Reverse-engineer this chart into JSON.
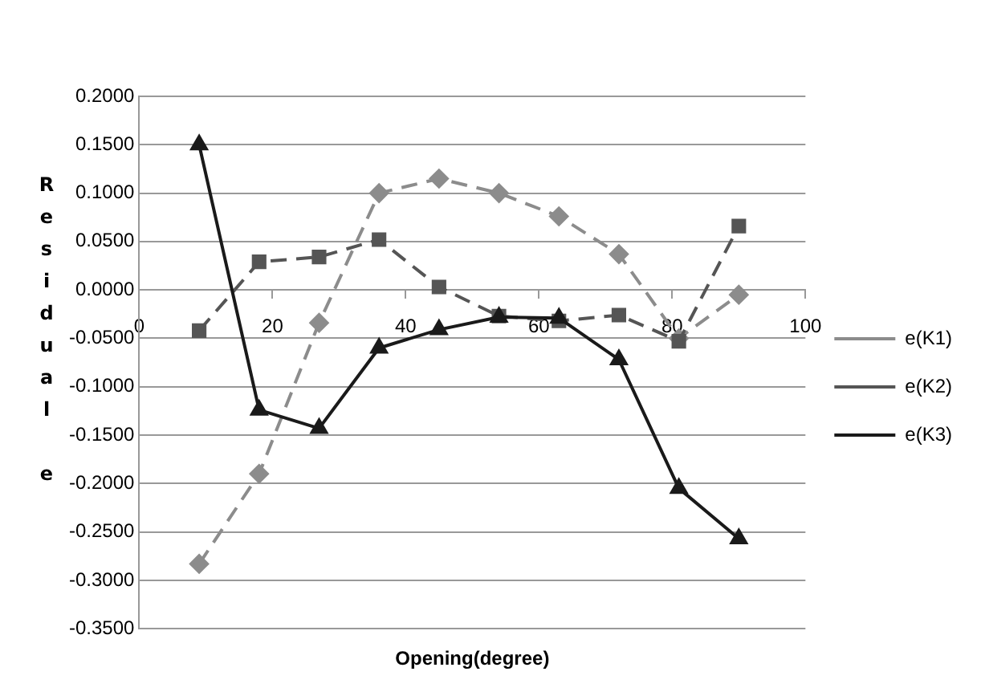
{
  "chart_data": {
    "type": "line",
    "xlabel": "Opening(degree)",
    "ylabel": "Residual e",
    "xlim": [
      0,
      100
    ],
    "xticks": [
      0,
      20,
      40,
      60,
      80,
      100
    ],
    "ylim": [
      -0.35,
      0.2
    ],
    "yticks": [
      {
        "value": -0.35,
        "label": "-0.3500"
      },
      {
        "value": -0.3,
        "label": "-0.3000"
      },
      {
        "value": -0.25,
        "label": "-0.2500"
      },
      {
        "value": -0.2,
        "label": "-0.2000"
      },
      {
        "value": -0.15,
        "label": "-0.1500"
      },
      {
        "value": -0.1,
        "label": "-0.1000"
      },
      {
        "value": -0.05,
        "label": "-0.0500"
      },
      {
        "value": 0,
        "label": "0.0000"
      },
      {
        "value": 0.05,
        "label": "0.0500"
      },
      {
        "value": 0.1,
        "label": "0.1000"
      },
      {
        "value": 0.15,
        "label": "0.1500"
      },
      {
        "value": 0.2,
        "label": "0.2000"
      }
    ],
    "grid": "y",
    "legend": "right",
    "x": [
      9,
      18,
      27,
      36,
      45,
      54,
      63,
      72,
      81,
      90
    ],
    "series": [
      {
        "name": "e(K1)",
        "color": "#8c8c8c",
        "marker": "diamond",
        "line_style": "dashed",
        "values": [
          -0.283,
          -0.19,
          -0.034,
          0.1,
          0.115,
          0.1,
          0.076,
          0.037,
          -0.05,
          -0.005
        ]
      },
      {
        "name": "e(K2)",
        "color": "#555555",
        "marker": "square",
        "line_style": "dashed",
        "values": [
          -0.042,
          0.029,
          0.034,
          0.052,
          0.003,
          -0.027,
          -0.032,
          -0.026,
          -0.053,
          0.066
        ]
      },
      {
        "name": "e(K3)",
        "color": "#1a1a1a",
        "marker": "triangle",
        "line_style": "solid",
        "values": [
          0.15,
          -0.124,
          -0.143,
          -0.06,
          -0.041,
          -0.028,
          -0.029,
          -0.072,
          -0.205,
          -0.257
        ]
      }
    ]
  }
}
